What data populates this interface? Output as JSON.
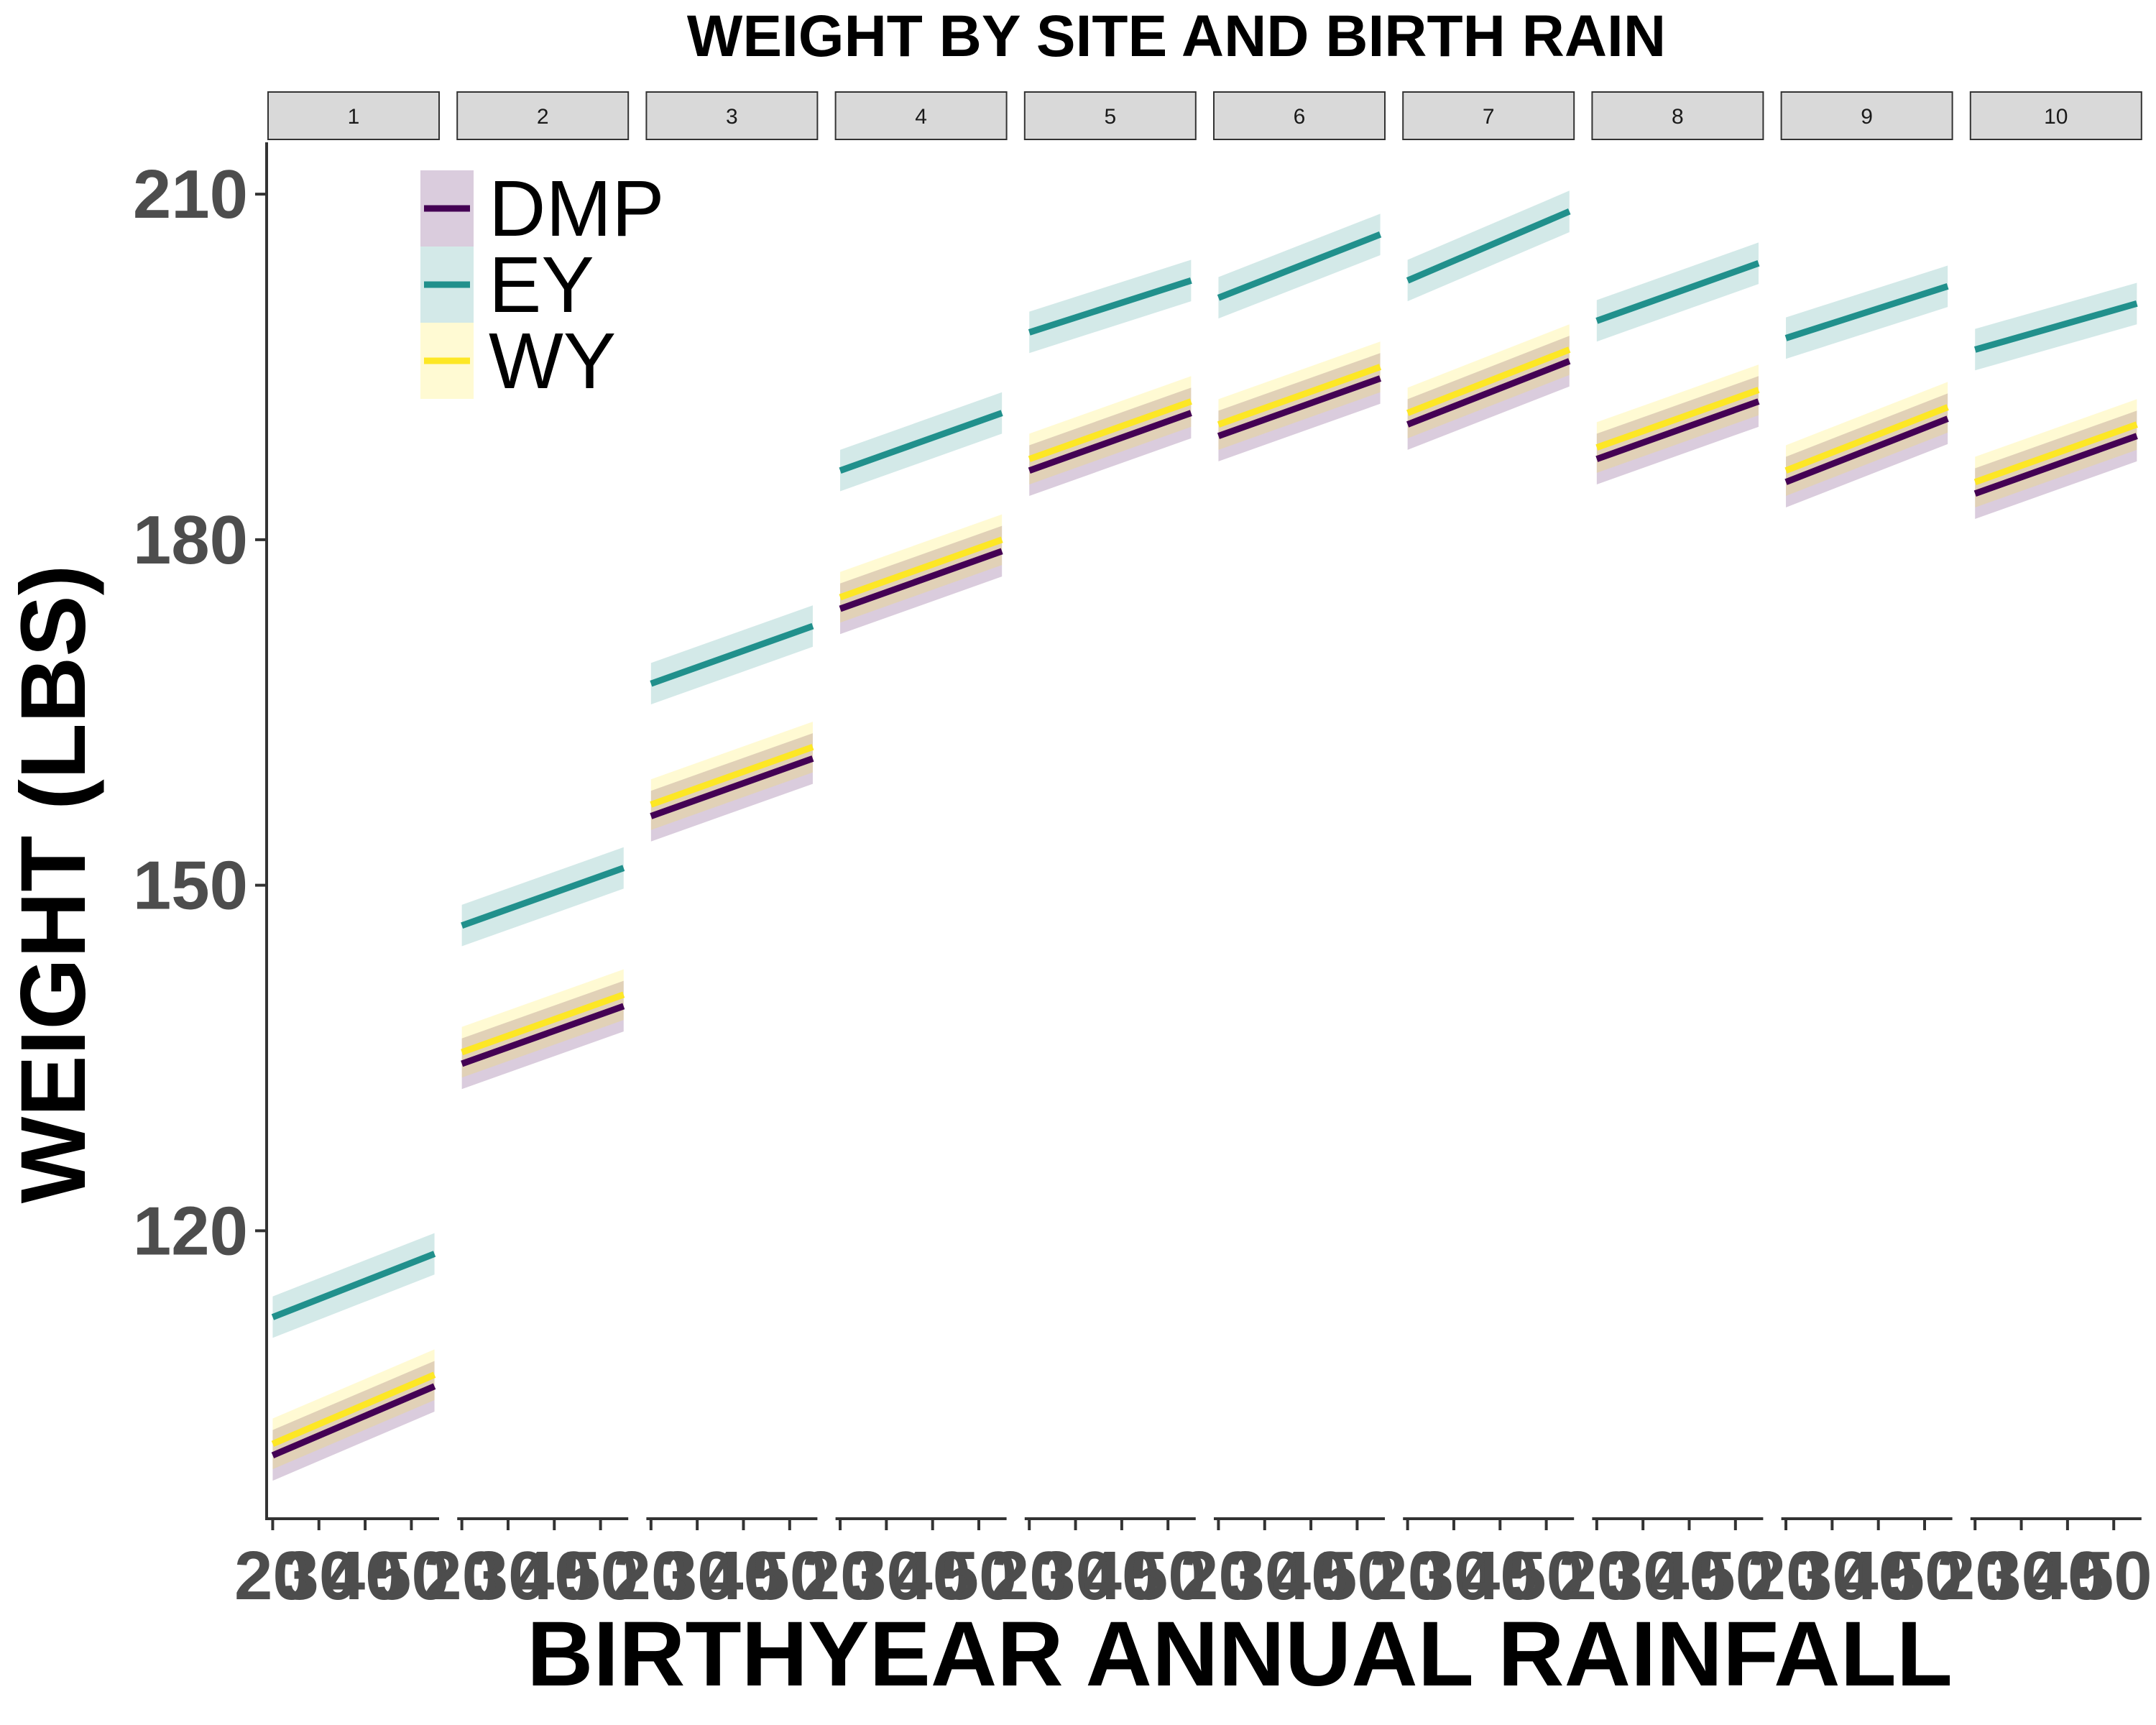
{
  "chart_data": {
    "type": "line",
    "title": "WEIGHT BY SITE AND BIRTH RAIN",
    "xlabel": "BIRTHYEAR ANNUAL RAINFALL",
    "ylabel": "WEIGHT (LBS)",
    "facets": [
      "1",
      "2",
      "3",
      "4",
      "5",
      "6",
      "7",
      "8",
      "9",
      "10"
    ],
    "x_ticks": [
      20,
      30,
      40,
      50
    ],
    "xlim": [
      19,
      56
    ],
    "y_ticks": [
      120,
      150,
      180,
      210
    ],
    "ylim": [
      95,
      214.5
    ],
    "grid": false,
    "legend_position": "top-left",
    "x_range": [
      20,
      55
    ],
    "series": [
      {
        "name": "DMP",
        "color": "#440154",
        "start": [
          100.5,
          134.5,
          156.0,
          174.0,
          186.0,
          189.0,
          190.0,
          187.0,
          185.0,
          184.0
        ],
        "end": [
          106.5,
          139.5,
          161.0,
          179.0,
          191.0,
          194.0,
          195.5,
          192.0,
          190.5,
          189.0
        ],
        "ci": 2.2
      },
      {
        "name": "EY",
        "color": "#21908c",
        "start": [
          112.5,
          146.5,
          167.5,
          186.0,
          198.0,
          201.0,
          202.5,
          199.0,
          197.5,
          196.5
        ],
        "end": [
          118.0,
          151.5,
          172.5,
          191.0,
          202.5,
          206.5,
          208.5,
          204.0,
          202.0,
          200.5
        ],
        "ci": 1.8
      },
      {
        "name": "WY",
        "color": "#fde725",
        "start": [
          101.5,
          135.5,
          157.0,
          175.0,
          187.0,
          190.0,
          191.0,
          188.0,
          186.0,
          185.0
        ],
        "end": [
          107.5,
          140.5,
          162.0,
          180.0,
          192.0,
          195.0,
          196.5,
          193.0,
          191.5,
          190.0
        ],
        "ci": 2.2
      }
    ]
  }
}
